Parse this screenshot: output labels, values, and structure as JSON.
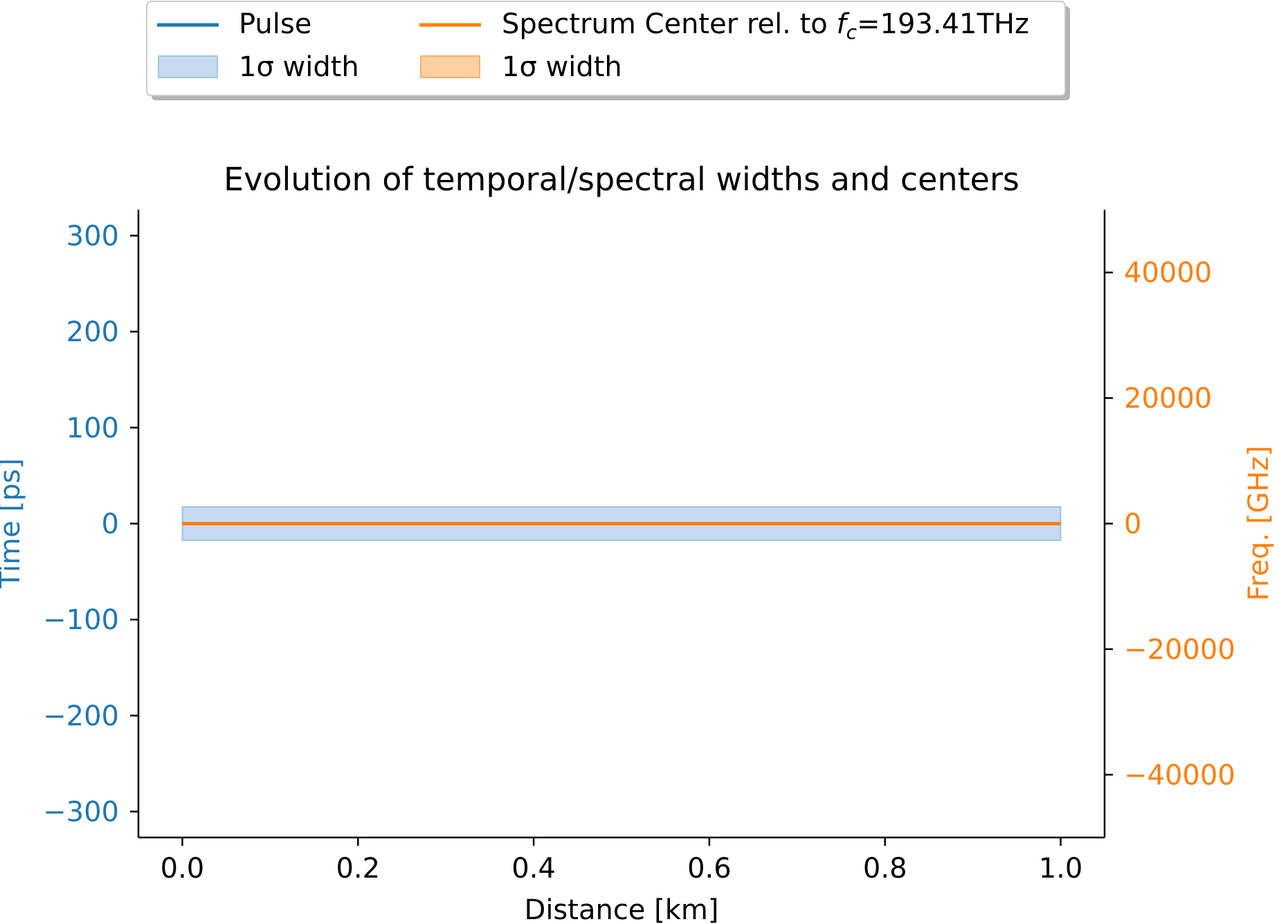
{
  "chart_data": {
    "type": "line",
    "title": "Evolution of temporal/spectral widths and centers",
    "xlabel": "Distance [km]",
    "ylabel_left": "Time [ps]",
    "ylabel_right": "Freq. [GHz]",
    "xlim": [
      -0.05,
      1.05
    ],
    "ylim_left": [
      -327,
      327
    ],
    "ylim_right": [
      -50000,
      50000
    ],
    "x_ticks": [
      "0.0",
      "0.2",
      "0.4",
      "0.6",
      "0.8",
      "1.0"
    ],
    "x_tick_values": [
      0.0,
      0.2,
      0.4,
      0.6,
      0.8,
      1.0
    ],
    "y_left_ticks": [
      "−300",
      "−200",
      "−100",
      "0",
      "100",
      "200",
      "300"
    ],
    "y_left_tick_values": [
      -300,
      -200,
      -100,
      0,
      100,
      200,
      300
    ],
    "y_right_ticks": [
      "−40000",
      "−20000",
      "0",
      "20000",
      "40000"
    ],
    "y_right_tick_values": [
      -40000,
      -20000,
      0,
      20000,
      40000
    ],
    "grid": false,
    "legend_placement": "top-center (above plot)",
    "series": [
      {
        "name": "Pulse",
        "axis": "left",
        "x": [
          0.0,
          1.0
        ],
        "center": [
          0,
          0
        ],
        "width_1sigma": [
          17.5,
          17.5
        ],
        "color": "#1f77b4"
      },
      {
        "name": "Spectrum Center rel. to",
        "axis": "right",
        "x": [
          0.0,
          1.0
        ],
        "center": [
          0,
          0
        ],
        "width_1sigma": [
          0,
          0
        ],
        "color": "#ff7f0e"
      }
    ],
    "legend": {
      "pulse_label": "Pulse",
      "pulse_width_label": "1σ width",
      "spectrum_label_prefix": "Spectrum Center rel. to ",
      "spectrum_label_symbol": "f",
      "spectrum_label_sub": "c",
      "spectrum_label_suffix": "=193.41THz",
      "spectrum_width_label": "1σ width"
    },
    "colors": {
      "left_axis": "#1f77b4",
      "right_axis": "#ff7f0e",
      "pulse_fill": "#c6dbef",
      "spectrum_fill": "#fdd0a2"
    }
  }
}
